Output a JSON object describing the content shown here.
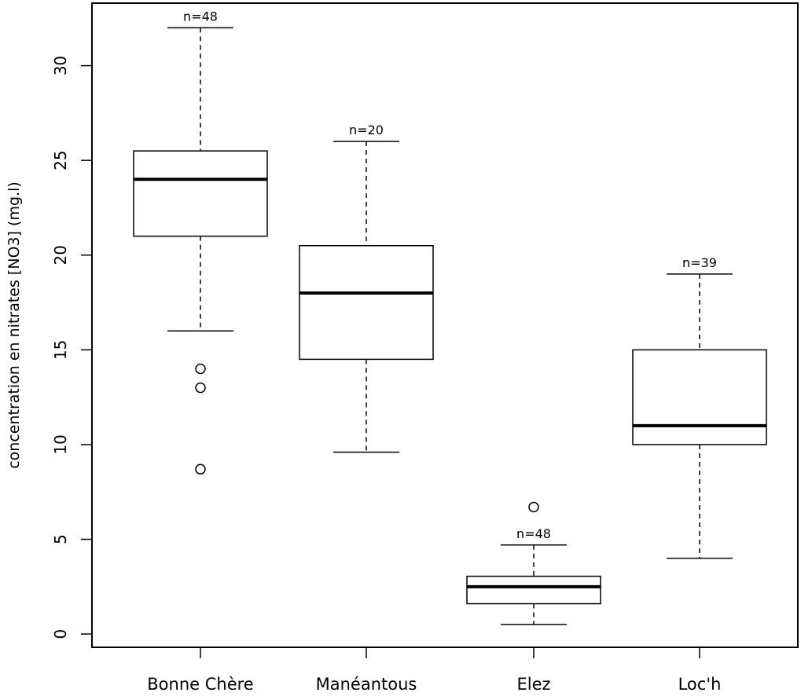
{
  "chart_data": {
    "type": "boxplot",
    "title": "",
    "xlabel": "",
    "ylabel": "concentration en nitrates [NO3] (mg.l)",
    "ylim": [
      -0.7,
      33.3
    ],
    "yticks": [
      0,
      5,
      10,
      15,
      20,
      25,
      30
    ],
    "grid": false,
    "categories": [
      "Bonne Chère",
      "Manéantous",
      "Elez",
      "Loc'h"
    ],
    "boxes": [
      {
        "category": "Bonne Chère",
        "n_label": "n=48",
        "whisker_low": 16,
        "q1": 21,
        "median": 24,
        "q3": 25.5,
        "whisker_high": 32,
        "outliers": [
          14,
          13,
          8.7
        ]
      },
      {
        "category": "Manéantous",
        "n_label": "n=20",
        "whisker_low": 9.6,
        "q1": 14.5,
        "median": 18,
        "q3": 20.5,
        "whisker_high": 26,
        "outliers": []
      },
      {
        "category": "Elez",
        "n_label": "n=48",
        "whisker_low": 0.5,
        "q1": 1.6,
        "median": 2.5,
        "q3": 3.05,
        "whisker_high": 4.7,
        "outliers": [
          6.7
        ]
      },
      {
        "category": "Loc'h",
        "n_label": "n=39",
        "whisker_low": 4,
        "q1": 10,
        "median": 11,
        "q3": 15,
        "whisker_high": 19,
        "outliers": []
      }
    ]
  }
}
